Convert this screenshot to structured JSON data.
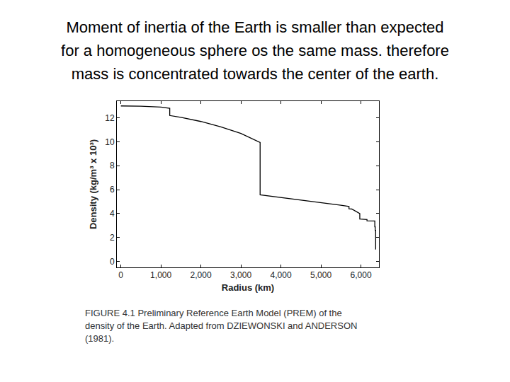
{
  "slide": {
    "heading": [
      "Moment of inertia of the Earth is smaller than expected",
      "for a homogeneous sphere os the same mass. therefore",
      "mass is concentrated towards the center of the earth."
    ],
    "caption": [
      "FIGURE 4.1  Preliminary Reference Earth Model (PREM) of the",
      "density of the Earth. Adapted from DZIEWONSKI and ANDERSON",
      "(1981)."
    ]
  },
  "chart_data": {
    "type": "line",
    "x_label": "Radius (km)",
    "y_label": "Density (kg/m³ x 10³)",
    "x": [
      0,
      500,
      1000,
      1221,
      1221,
      1500,
      2000,
      2500,
      3000,
      3480,
      3480,
      4000,
      4500,
      5000,
      5500,
      5701,
      5701,
      5771,
      5971,
      5971,
      6151,
      6151,
      6300,
      6346,
      6346,
      6356,
      6356,
      6368,
      6368,
      6371
    ],
    "values": [
      13.0,
      12.98,
      12.9,
      12.8,
      12.2,
      12.05,
      11.7,
      11.25,
      10.7,
      9.95,
      5.57,
      5.35,
      5.15,
      4.95,
      4.7,
      4.6,
      4.4,
      4.38,
      4.0,
      3.55,
      3.5,
      3.4,
      3.38,
      3.38,
      2.9,
      2.9,
      2.6,
      2.6,
      1.02,
      1.02
    ],
    "color": "#000000",
    "xlim": [
      -100,
      6450
    ],
    "ylim": [
      -0.5,
      13.4
    ],
    "xticks": [
      0,
      {
        "value": 1000,
        "label": "1,000"
      },
      {
        "value": 2000,
        "label": "2,000"
      },
      {
        "value": 3000,
        "label": "3,000"
      },
      {
        "value": 4000,
        "label": "4,000"
      },
      {
        "value": 5000,
        "label": "5,000"
      },
      {
        "value": 6000,
        "label": "6,000"
      }
    ],
    "yticks": [
      0,
      2,
      4,
      6,
      8,
      10,
      12
    ],
    "grid": false
  }
}
